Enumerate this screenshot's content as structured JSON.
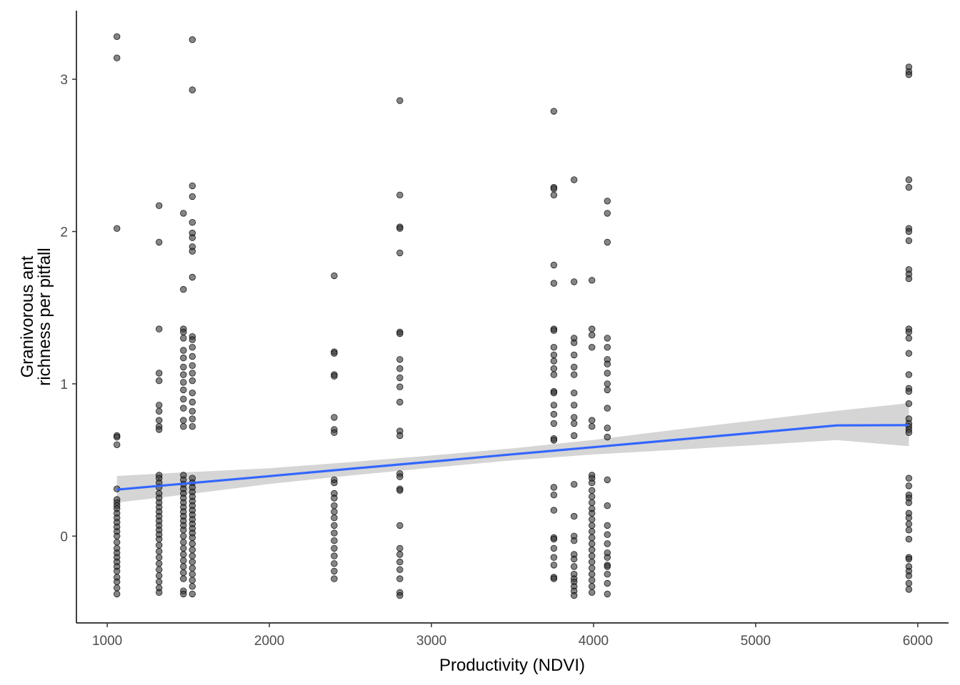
{
  "chart_data": {
    "type": "scatter",
    "title": "",
    "xlabel": "Productivity (NDVI)",
    "ylabel": [
      "Granivorous ant",
      "richness per pitfall"
    ],
    "xlim": [
      810,
      6190
    ],
    "ylim": [
      -0.57,
      3.45
    ],
    "xticks": [
      1000,
      2000,
      3000,
      4000,
      5000,
      6000
    ],
    "yticks": [
      0,
      1,
      2,
      3
    ],
    "grid": false,
    "legend": "none",
    "colors": {
      "points": "#333333",
      "trend": "#3366FF",
      "ribbon": "#BEBEBE"
    },
    "groups": [
      {
        "x": 1060,
        "y": [
          3.28,
          3.14,
          2.02,
          0.66,
          0.65,
          0.6,
          0.31,
          0.24,
          0.22,
          0.2,
          0.18,
          0.15,
          0.12,
          0.09,
          0.06,
          0.03,
          0.0,
          -0.04,
          -0.08,
          -0.11,
          -0.14,
          -0.17,
          -0.2,
          -0.23,
          -0.27,
          -0.3,
          -0.34,
          -0.38
        ]
      },
      {
        "x": 1320,
        "y": [
          2.17,
          1.93,
          1.36,
          1.07,
          1.02,
          0.86,
          0.82,
          0.76,
          0.72,
          0.7,
          0.4,
          0.38,
          0.35,
          0.32,
          0.28,
          0.25,
          0.22,
          0.19,
          0.16,
          0.13,
          0.1,
          0.07,
          0.04,
          0.01,
          -0.02,
          -0.06,
          -0.1,
          -0.14,
          -0.18,
          -0.22,
          -0.26,
          -0.3,
          -0.34,
          -0.37
        ]
      },
      {
        "x": 1470,
        "y": [
          2.12,
          1.62,
          1.36,
          1.34,
          1.3,
          1.22,
          1.17,
          1.11,
          1.06,
          1.01,
          0.96,
          0.9,
          0.84,
          0.76,
          0.72,
          0.4,
          0.37,
          0.34,
          0.31,
          0.28,
          0.25,
          0.22,
          0.19,
          0.16,
          0.13,
          0.1,
          0.07,
          0.04,
          0.0,
          -0.04,
          -0.08,
          -0.12,
          -0.16,
          -0.2,
          -0.24,
          -0.28,
          -0.36,
          -0.38
        ]
      },
      {
        "x": 1525,
        "y": [
          3.26,
          2.93,
          2.3,
          2.23,
          2.06,
          1.99,
          1.96,
          1.9,
          1.87,
          1.7,
          1.31,
          1.29,
          1.24,
          1.18,
          1.12,
          1.07,
          1.02,
          0.94,
          0.88,
          0.82,
          0.77,
          0.72,
          0.38,
          0.35,
          0.32,
          0.29,
          0.26,
          0.23,
          0.2,
          0.17,
          0.14,
          0.11,
          0.08,
          0.05,
          0.02,
          -0.01,
          -0.05,
          -0.09,
          -0.13,
          -0.17,
          -0.21,
          -0.25,
          -0.29,
          -0.33,
          -0.38
        ]
      },
      {
        "x": 2400,
        "y": [
          1.71,
          1.21,
          1.2,
          1.06,
          1.05,
          0.78,
          0.7,
          0.68,
          0.37,
          0.35,
          0.28,
          0.25,
          0.2,
          0.16,
          0.12,
          0.07,
          0.02,
          -0.03,
          -0.08,
          -0.13,
          -0.18,
          -0.23,
          -0.28
        ]
      },
      {
        "x": 2805,
        "y": [
          2.86,
          2.24,
          2.03,
          2.02,
          1.86,
          1.34,
          1.33,
          1.16,
          1.1,
          1.04,
          0.98,
          0.88,
          0.69,
          0.66,
          0.41,
          0.39,
          0.31,
          0.3,
          0.07,
          -0.08,
          -0.12,
          -0.17,
          -0.22,
          -0.28,
          -0.37,
          -0.39
        ]
      },
      {
        "x": 3755,
        "y": [
          2.79,
          2.29,
          2.28,
          2.24,
          1.78,
          1.66,
          1.36,
          1.35,
          1.24,
          1.19,
          1.15,
          1.1,
          1.06,
          0.95,
          0.94,
          0.86,
          0.8,
          0.74,
          0.64,
          0.63,
          0.32,
          0.27,
          0.17,
          -0.01,
          -0.02,
          -0.08,
          -0.14,
          -0.19,
          -0.27,
          -0.28
        ]
      },
      {
        "x": 3880,
        "y": [
          2.34,
          1.67,
          1.3,
          1.27,
          1.19,
          1.11,
          1.06,
          0.94,
          0.86,
          0.78,
          0.74,
          0.66,
          0.34,
          0.13,
          0.0,
          -0.03,
          -0.12,
          -0.15,
          -0.2,
          -0.25,
          -0.28,
          -0.3,
          -0.33,
          -0.36,
          -0.39
        ]
      },
      {
        "x": 3990,
        "y": [
          1.68,
          1.36,
          1.32,
          1.24,
          0.76,
          0.72,
          0.4,
          0.38,
          0.35,
          0.3,
          0.26,
          0.22,
          0.18,
          0.15,
          0.11,
          0.07,
          0.03,
          -0.01,
          -0.05,
          -0.09,
          -0.13,
          -0.17,
          -0.21,
          -0.25,
          -0.29,
          -0.33,
          -0.37
        ]
      },
      {
        "x": 4085,
        "y": [
          2.2,
          2.12,
          1.93,
          1.3,
          1.24,
          1.16,
          1.13,
          1.07,
          1.0,
          0.96,
          0.84,
          0.71,
          0.65,
          0.37,
          0.2,
          0.07,
          0.01,
          -0.05,
          -0.11,
          -0.14,
          -0.19,
          -0.2,
          -0.25,
          -0.31,
          -0.38
        ]
      },
      {
        "x": 5945,
        "y": [
          3.08,
          3.05,
          3.03,
          2.34,
          2.29,
          2.02,
          2.0,
          1.94,
          1.75,
          1.72,
          1.69,
          1.36,
          1.34,
          1.3,
          1.2,
          1.06,
          0.97,
          0.95,
          0.87,
          0.77,
          0.74,
          0.72,
          0.7,
          0.68,
          0.38,
          0.33,
          0.27,
          0.25,
          0.22,
          0.15,
          0.12,
          0.08,
          0.04,
          -0.02,
          -0.14,
          -0.15,
          -0.2,
          -0.23,
          -0.26,
          -0.31,
          -0.35
        ]
      }
    ],
    "trend": {
      "x": [
        1060,
        1500,
        2000,
        2500,
        3000,
        3500,
        4000,
        4500,
        5000,
        5500,
        5945
      ],
      "fit": [
        0.305,
        0.347,
        0.394,
        0.442,
        0.489,
        0.537,
        0.584,
        0.632,
        0.679,
        0.727,
        0.729
      ],
      "upper": [
        0.395,
        0.42,
        0.446,
        0.486,
        0.529,
        0.576,
        0.632,
        0.698,
        0.76,
        0.823,
        0.873
      ],
      "lower": [
        0.22,
        0.275,
        0.342,
        0.398,
        0.449,
        0.498,
        0.536,
        0.566,
        0.598,
        0.631,
        0.59
      ]
    }
  }
}
